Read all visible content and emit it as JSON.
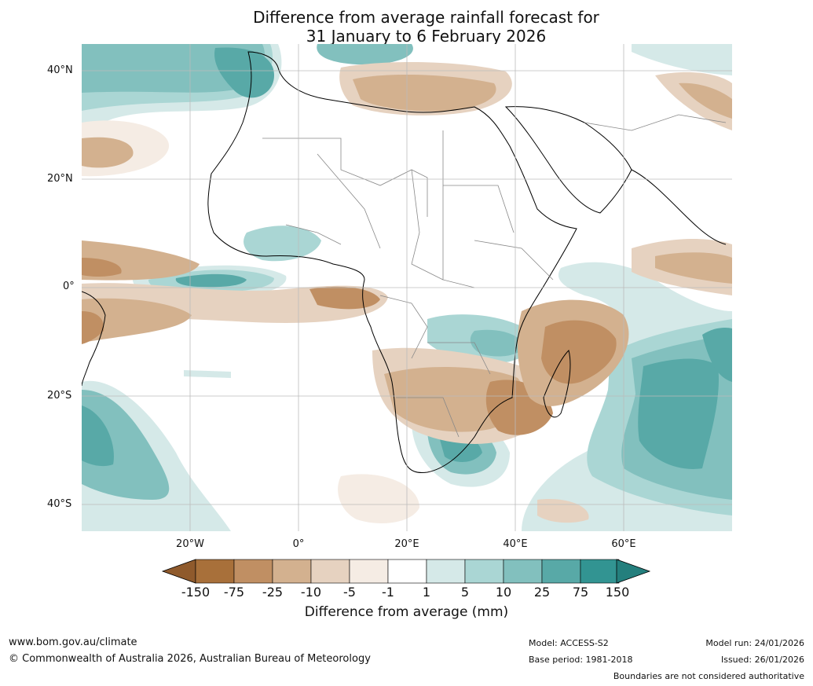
{
  "title": {
    "line1": "Difference from average rainfall forecast for",
    "line2": "31 January to 6 February 2026"
  },
  "axes": {
    "lat_labels": [
      "40°N",
      "20°N",
      "0°",
      "20°S",
      "40°S"
    ],
    "lon_labels": [
      "20°W",
      "0°",
      "20°E",
      "40°E",
      "60°E"
    ]
  },
  "legend": {
    "ticks": [
      "-150",
      "-75",
      "-25",
      "-10",
      "-5",
      "-1",
      "1",
      "5",
      "10",
      "25",
      "75",
      "150"
    ],
    "colors": [
      "#a8703a",
      "#c08f63",
      "#d3b18f",
      "#e6d2c0",
      "#f5ece4",
      "#ffffff",
      "#d5e9e8",
      "#aad6d4",
      "#82c0be",
      "#58a9a7",
      "#329492"
    ],
    "arrow_low_color": "#8f5a2c",
    "arrow_high_color": "#247f7d",
    "label": "Difference from average (mm)"
  },
  "footer": {
    "website": "www.bom.gov.au/climate",
    "copyright": "© Commonwealth of Australia 2026, Australian Bureau of Meteorology",
    "model": "Model: ACCESS-S2",
    "base_period": "Base period: 1981-2018",
    "model_run": "Model run: 24/01/2026",
    "issued": "Issued: 26/01/2026",
    "disclaimer": "Boundaries are not considered authoritative"
  }
}
